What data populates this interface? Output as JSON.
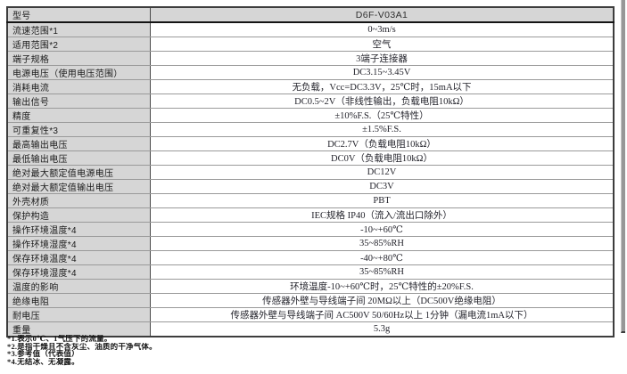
{
  "colors": {
    "cell_gray": "#d6d6d6",
    "border_dark": "#3d3d3d",
    "border_light": "#9a9a9a"
  },
  "table": {
    "header": {
      "label": "型号",
      "value": "D6F-V03A1"
    },
    "rows": [
      {
        "label": "流速范围*1",
        "value": "0~3m/s"
      },
      {
        "label": "适用范围*2",
        "value": "空气"
      },
      {
        "label": "端子规格",
        "value": "3端子连接器"
      },
      {
        "label": "电源电压（使用电压范围）",
        "value": "DC3.15~3.45V"
      },
      {
        "label": "消耗电流",
        "value": "无负载，Vcc=DC3.3V，25℃时，15mA以下"
      },
      {
        "label": "输出信号",
        "value": "DC0.5~2V（非线性输出，负载电阻10kΩ）"
      },
      {
        "label": "精度",
        "value": "±10%F.S.（25℃特性）"
      },
      {
        "label": "可重复性*3",
        "value": "±1.5%F.S."
      },
      {
        "label": "最高输出电压",
        "value": "DC2.7V（负载电阻10kΩ）"
      },
      {
        "label": "最低输出电压",
        "value": "DC0V（负载电阻10kΩ）"
      },
      {
        "label": "绝对最大额定值电源电压",
        "value": "DC12V"
      },
      {
        "label": "绝对最大额定值输出电压",
        "value": "DC3V"
      },
      {
        "label": "外壳材质",
        "value": "PBT"
      },
      {
        "label": "保护构造",
        "value": "IEC规格 IP40（流入/流出口除外）"
      },
      {
        "label": "操作环境温度*4",
        "value": "-10~+60℃"
      },
      {
        "label": "操作环境湿度*4",
        "value": "35~85%RH"
      },
      {
        "label": "保存环境温度*4",
        "value": "-40~+80℃"
      },
      {
        "label": "保存环境湿度*4",
        "value": "35~85%RH"
      },
      {
        "label": "温度的影响",
        "value": "环境温度-10~+60℃时，25℃特性的±20%F.S."
      },
      {
        "label": "绝缘电阻",
        "value": "传感器外壁与导线端子间 20MΩ以上（DC500V绝缘电阻）"
      },
      {
        "label": "耐电压",
        "value": "传感器外壁与导线端子间 AC500V 50/60Hz以上 1分钟（漏电流1mA以下）"
      },
      {
        "label": "重量",
        "value": "5.3g"
      }
    ]
  },
  "footnotes": [
    "*1.表示0℃、1气压下的流量。",
    "*2.是指干燥且不含灰尘、油质的干净气体。",
    "*3.参考值（代表值）",
    "*4.无结冰、无凝露。"
  ]
}
